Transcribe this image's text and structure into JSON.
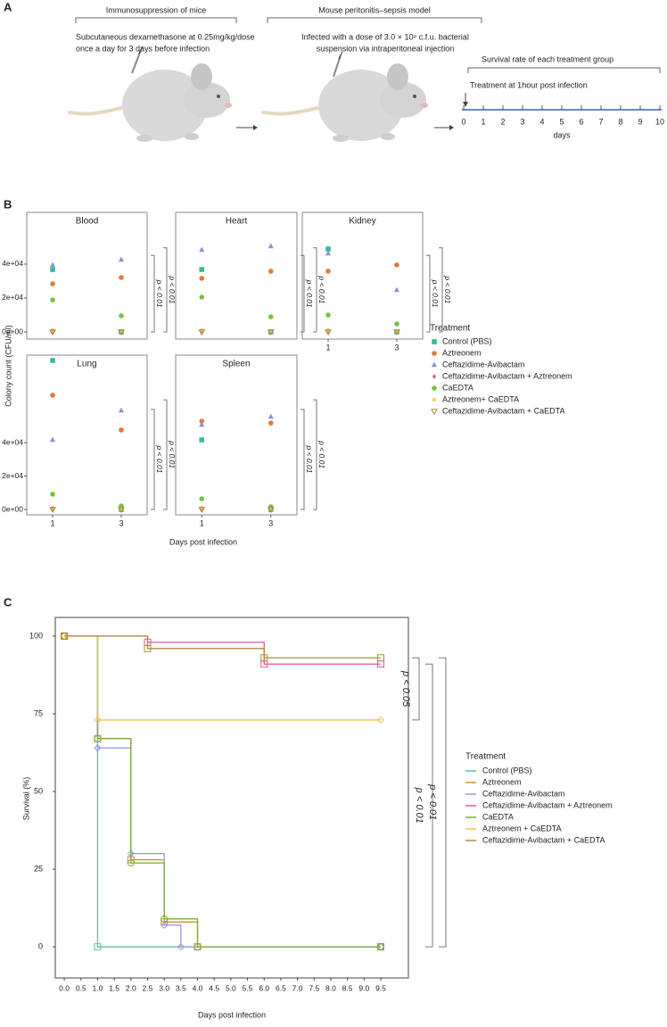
{
  "panel_a": {
    "label": "A",
    "steps": [
      {
        "title": "Immunosuppression of mice",
        "lines": [
          "Subcutaneous dexamethasone at 0.25mg/kg/dose",
          "once a day for 3 days before infection"
        ]
      },
      {
        "title": "Mouse peritonitis–sepsis model",
        "lines": [
          "Infected with a dose of 3.0 × 10⁸ c.f.u. bacterial",
          "suspension via intraperitoneal injection"
        ]
      }
    ],
    "timeline": {
      "title": "Survival rate of each treatment group",
      "note": "Treatment at 1hour post infection",
      "ticks": [
        0,
        1,
        2,
        3,
        4,
        5,
        6,
        7,
        8,
        9,
        10
      ],
      "label": "days"
    }
  },
  "panel_b": {
    "label": "B",
    "ylabel": "Colony count (CFU/ml)",
    "xlabel": "Days post infection",
    "legend": {
      "title": "Treatment",
      "entries": [
        {
          "name": "Control (PBS)",
          "color": "#3bb8a0",
          "marker": "square"
        },
        {
          "name": "Aztreonem",
          "color": "#e07b39",
          "marker": "circle"
        },
        {
          "name": "Ceftazidime-Avibactam",
          "color": "#8e8fd6",
          "marker": "triangle"
        },
        {
          "name": "Ceftazidime-Avibactam + Aztreonem",
          "color": "#e75b9b",
          "marker": "diamond"
        },
        {
          "name": "CaEDTA",
          "color": "#7ac143",
          "marker": "circle"
        },
        {
          "name": "Aztreonem+ CaEDTA",
          "color": "#f5c542",
          "marker": "dot"
        },
        {
          "name": "Ceftazidime-Avibactam + CaEDTA",
          "color": "#a08a40",
          "marker": "triangle-down"
        }
      ]
    }
  },
  "panel_c": {
    "label": "C"
  },
  "chart_data": [
    {
      "type": "scatter",
      "title": "Blood",
      "ylim": [
        -4200,
        70500
      ],
      "yticks": [
        {
          "value": 0,
          "label": "0e+00"
        },
        {
          "value": 20000,
          "label": "2e+04"
        },
        {
          "value": 40000,
          "label": "4e+04"
        }
      ],
      "series": [
        {
          "values": [
            36800,
            0
          ]
        },
        {
          "values": [
            28400,
            32100
          ]
        },
        {
          "values": [
            39500,
            42600
          ]
        },
        {
          "values": [
            500,
            0
          ]
        },
        {
          "values": [
            18900,
            9500
          ]
        },
        {
          "values": [
            1000,
            0
          ]
        },
        {
          "values": [
            0,
            0
          ]
        }
      ],
      "annotations": [
        "p < 0.01",
        "p < 0.01"
      ]
    },
    {
      "type": "scatter",
      "title": "Heart",
      "ylim": [
        -4200,
        70500
      ],
      "series": [
        {
          "values": [
            36800,
            0
          ]
        },
        {
          "values": [
            31600,
            35800
          ]
        },
        {
          "values": [
            48400,
            50500
          ]
        },
        {
          "values": [
            500,
            0
          ]
        },
        {
          "values": [
            20500,
            8900
          ]
        },
        {
          "values": [
            1000,
            0
          ]
        },
        {
          "values": [
            0,
            0
          ]
        }
      ],
      "annotations": [
        "p < 0.01",
        "p < 0.01"
      ]
    },
    {
      "type": "scatter",
      "title": "Kidney",
      "ylim": [
        -4200,
        70500
      ],
      "categories": [
        "1",
        "3"
      ],
      "series": [
        {
          "values": [
            48900,
            0
          ]
        },
        {
          "values": [
            35800,
            39500
          ]
        },
        {
          "values": [
            46300,
            24700
          ]
        },
        {
          "values": [
            500,
            0
          ]
        },
        {
          "values": [
            10000,
            4700
          ]
        },
        {
          "values": [
            1000,
            0
          ]
        },
        {
          "values": [
            0,
            0
          ]
        }
      ],
      "annotations": [
        "p < 0.01",
        "p < 0.01"
      ]
    },
    {
      "type": "scatter",
      "title": "Lung",
      "ylim": [
        -3200,
        92300
      ],
      "categories": [
        "1",
        "3"
      ],
      "yticks": [
        {
          "value": 0,
          "label": "0e+00"
        },
        {
          "value": 20000,
          "label": "2e+04"
        },
        {
          "value": 40000,
          "label": "4e+04"
        }
      ],
      "series": [
        {
          "values": [
            89100,
            0
          ]
        },
        {
          "values": [
            68300,
            47500
          ]
        },
        {
          "values": [
            41600,
            59200
          ]
        },
        {
          "values": [
            500,
            0
          ]
        },
        {
          "values": [
            9100,
            2100
          ]
        },
        {
          "values": [
            1000,
            0
          ]
        },
        {
          "values": [
            0,
            0
          ]
        }
      ],
      "annotations": [
        "p < 0.01",
        "p < 0.01"
      ]
    },
    {
      "type": "scatter",
      "title": "Spleen",
      "ylim": [
        -3200,
        92300
      ],
      "categories": [
        "1",
        "3"
      ],
      "series": [
        {
          "values": [
            41600,
            0
          ]
        },
        {
          "values": [
            52800,
            51700
          ]
        },
        {
          "values": [
            50700,
            55500
          ]
        },
        {
          "values": [
            500,
            0
          ]
        },
        {
          "values": [
            6400,
            1600
          ]
        },
        {
          "values": [
            1000,
            0
          ]
        },
        {
          "values": [
            0,
            0
          ]
        }
      ],
      "annotations": [
        "p < 0.01",
        "p < 0.01"
      ]
    },
    {
      "type": "line",
      "xlabel": "Days post infection",
      "ylabel": "Survival (%)",
      "legend_title": "Treatment",
      "xlim": [
        -0.27,
        10.33
      ],
      "ylim": [
        -10,
        106
      ],
      "xticks": [
        {
          "value": 0,
          "label": "0.0"
        },
        0.5,
        {
          "value": 1,
          "label": "1.0"
        },
        1.5,
        {
          "value": 2,
          "label": "2.0"
        },
        2.5,
        {
          "value": 3,
          "label": "3.0"
        },
        3.5,
        {
          "value": 4,
          "label": "4.0"
        },
        4.5,
        {
          "value": 5,
          "label": "5.0"
        },
        5.5,
        {
          "value": 6,
          "label": "6.0"
        },
        6.5,
        {
          "value": 7,
          "label": "7.0"
        },
        7.5,
        {
          "value": 8,
          "label": "8.0"
        },
        8.5,
        {
          "value": 9,
          "label": "9.0"
        },
        9.5
      ],
      "yticks": [
        0,
        25,
        50,
        75,
        100
      ],
      "series": [
        {
          "name": "Control (PBS)",
          "color": "#5bbfae",
          "x": [
            0,
            1,
            9.5
          ],
          "values": [
            100,
            0,
            0
          ]
        },
        {
          "name": "Aztreonem",
          "color": "#d98c2a",
          "x": [
            0,
            1,
            2,
            3,
            4,
            9.5
          ],
          "values": [
            100,
            67,
            28,
            8,
            0,
            0
          ]
        },
        {
          "name": "Ceftazidime-Avibactam",
          "color": "#9a9ae0",
          "x": [
            0,
            1,
            2,
            3,
            3.5,
            9.5
          ],
          "values": [
            100,
            64,
            30,
            7,
            0,
            0
          ]
        },
        {
          "name": "Ceftazidime-Avibactam + Aztreonem",
          "color": "#e8559a",
          "x": [
            0,
            2.5,
            6,
            9.5
          ],
          "values": [
            100,
            98,
            91,
            91
          ]
        },
        {
          "name": "CaEDTA",
          "color": "#7bab3c",
          "x": [
            0,
            1,
            2,
            3,
            4,
            9.5
          ],
          "values": [
            100,
            67,
            27,
            9,
            0,
            0
          ]
        },
        {
          "name": "Aztreonem + CaEDTA",
          "color": "#f2c14e",
          "x": [
            0,
            1,
            9.5
          ],
          "values": [
            100,
            73,
            73
          ]
        },
        {
          "name": "Ceftazidime-Avibactam + CaEDTA",
          "color": "#a8913a",
          "x": [
            0,
            2.5,
            6,
            9.5
          ],
          "values": [
            100,
            96,
            93,
            93
          ]
        }
      ],
      "annotations": [
        "p < 0.05",
        "p < 0.01",
        "p < 0.01"
      ]
    }
  ]
}
